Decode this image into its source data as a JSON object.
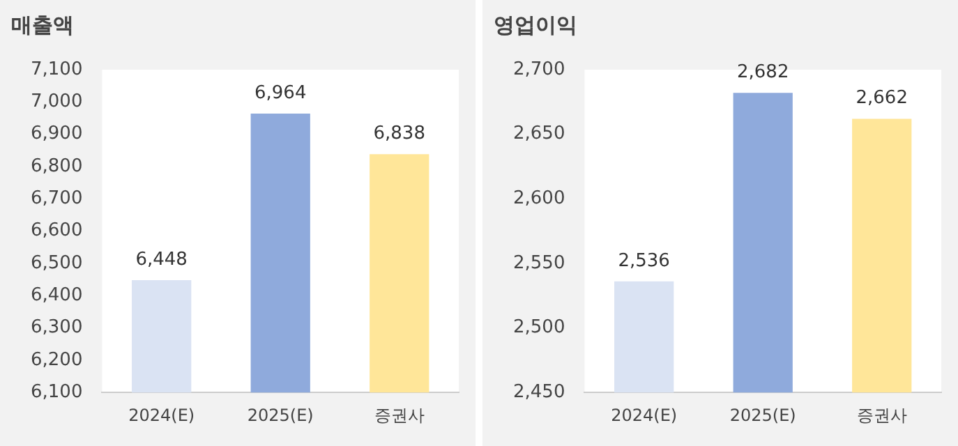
{
  "chart_data": [
    {
      "type": "bar",
      "title": "매출액",
      "categories": [
        "2024(E)",
        "2025(E)",
        "증권사"
      ],
      "values": [
        6448,
        6964,
        6838
      ],
      "colors": [
        "#dae3f3",
        "#8faadc",
        "#ffe699"
      ],
      "value_labels": [
        "6,448",
        "6,964",
        "6,838"
      ],
      "ylim": [
        6100,
        7100
      ],
      "yticks": [
        {
          "value": 6100,
          "label": "6,100"
        },
        {
          "value": 6200,
          "label": "6,200"
        },
        {
          "value": 6300,
          "label": "6,300"
        },
        {
          "value": 6400,
          "label": "6,400"
        },
        {
          "value": 6500,
          "label": "6,500"
        },
        {
          "value": 6600,
          "label": "6,600"
        },
        {
          "value": 6700,
          "label": "6,700"
        },
        {
          "value": 6800,
          "label": "6,800"
        },
        {
          "value": 6900,
          "label": "6,900"
        },
        {
          "value": 7000,
          "label": "7,000"
        },
        {
          "value": 7100,
          "label": "7,100"
        }
      ]
    },
    {
      "type": "bar",
      "title": "영업이익",
      "categories": [
        "2024(E)",
        "2025(E)",
        "증권사"
      ],
      "values": [
        2536,
        2682,
        2662
      ],
      "colors": [
        "#dae3f3",
        "#8faadc",
        "#ffe699"
      ],
      "value_labels": [
        "2,536",
        "2,682",
        "2,662"
      ],
      "ylim": [
        2450,
        2700
      ],
      "yticks": [
        {
          "value": 2450,
          "label": "2,450"
        },
        {
          "value": 2500,
          "label": "2,500"
        },
        {
          "value": 2550,
          "label": "2,550"
        },
        {
          "value": 2600,
          "label": "2,600"
        },
        {
          "value": 2650,
          "label": "2,650"
        },
        {
          "value": 2700,
          "label": "2,700"
        }
      ]
    }
  ]
}
